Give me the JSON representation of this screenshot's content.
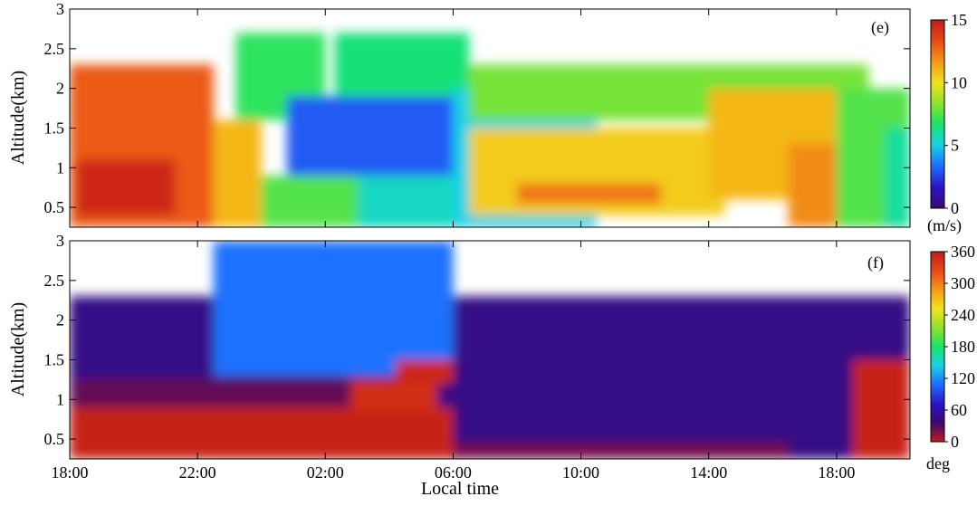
{
  "chart_data": [
    {
      "type": "heatmap",
      "panel_label": "(e)",
      "ylabel": "Altitude(km)",
      "ylim": [
        0.25,
        3.0
      ],
      "y_ticks": [
        "0.5",
        "1",
        "1.5",
        "2",
        "2.5",
        "3"
      ],
      "y_tick_values": [
        0.5,
        1.0,
        1.5,
        2.0,
        2.5,
        3.0
      ],
      "colorbar": {
        "unit": "(m/s)",
        "range": [
          0,
          15
        ],
        "ticks": [
          "0",
          "5",
          "10",
          "15"
        ],
        "tick_values": [
          0,
          5,
          10,
          15
        ],
        "colormap": [
          "#3a0a6e",
          "#2a14c8",
          "#1e6cff",
          "#17d2e6",
          "#18e36c",
          "#8de32a",
          "#f2e21c",
          "#f59a17",
          "#e84a14",
          "#c21a1a"
        ]
      },
      "regions": [
        {
          "t": [
            0,
            4.5
          ],
          "alt": [
            0.25,
            2.3
          ],
          "value": 13.0
        },
        {
          "t": [
            0.2,
            3.3
          ],
          "alt": [
            0.4,
            1.1
          ],
          "value": 14.5
        },
        {
          "t": [
            4.5,
            6.0
          ],
          "alt": [
            0.25,
            1.6
          ],
          "value": 11.0
        },
        {
          "t": [
            5.2,
            8.0
          ],
          "alt": [
            1.6,
            2.7
          ],
          "value": 7.0
        },
        {
          "t": [
            6.0,
            9.0
          ],
          "alt": [
            0.25,
            0.9
          ],
          "value": 7.5
        },
        {
          "t": [
            6.8,
            13.0
          ],
          "alt": [
            0.9,
            1.9
          ],
          "value": 3.0
        },
        {
          "t": [
            8.3,
            12.5
          ],
          "alt": [
            1.9,
            2.7
          ],
          "value": 6.5
        },
        {
          "t": [
            9.0,
            12.0
          ],
          "alt": [
            0.25,
            0.9
          ],
          "value": 5.5
        },
        {
          "t": [
            12.0,
            16.5
          ],
          "alt": [
            0.25,
            2.0
          ],
          "value": 5.0
        },
        {
          "t": [
            12.5,
            25.0
          ],
          "alt": [
            1.6,
            2.3
          ],
          "value": 8.0
        },
        {
          "t": [
            12.5,
            20.5
          ],
          "alt": [
            0.4,
            1.5
          ],
          "value": 10.5
        },
        {
          "t": [
            14.0,
            18.5
          ],
          "alt": [
            0.55,
            0.8
          ],
          "value": 12.5
        },
        {
          "t": [
            20.0,
            24.0
          ],
          "alt": [
            0.6,
            2.0
          ],
          "value": 11.0
        },
        {
          "t": [
            22.5,
            24.5
          ],
          "alt": [
            0.25,
            1.3
          ],
          "value": 12.0
        },
        {
          "t": [
            24.0,
            26.3
          ],
          "alt": [
            0.25,
            2.0
          ],
          "value": 7.5
        },
        {
          "t": [
            25.5,
            26.3
          ],
          "alt": [
            0.25,
            1.5
          ],
          "value": 6.0
        }
      ]
    },
    {
      "type": "heatmap",
      "panel_label": "(f)",
      "ylabel": "Altitude(km)",
      "xlabel": "Local time",
      "ylim": [
        0.25,
        3.0
      ],
      "y_ticks": [
        "0.5",
        "1",
        "1.5",
        "2",
        "2.5",
        "3"
      ],
      "y_tick_values": [
        0.5,
        1.0,
        1.5,
        2.0,
        2.5,
        3.0
      ],
      "x_ticks": [
        "18:00",
        "22:00",
        "02:00",
        "06:00",
        "10:00",
        "14:00",
        "18:00"
      ],
      "x_tick_hours": [
        0,
        4,
        8,
        12,
        16,
        20,
        24
      ],
      "colorbar": {
        "unit": "deg",
        "range": [
          0,
          360
        ],
        "ticks": [
          "0",
          "60",
          "120",
          "180",
          "240",
          "300",
          "360"
        ],
        "tick_values": [
          0,
          60,
          120,
          180,
          240,
          300,
          360
        ],
        "colormap": [
          "#c21a1a",
          "#3a0a6e",
          "#2a14c8",
          "#1e6cff",
          "#17d2e6",
          "#18e36c",
          "#8de32a",
          "#f2e21c",
          "#f59a17",
          "#e84a14",
          "#c21a1a"
        ]
      },
      "regions": [
        {
          "t": [
            0,
            26.3
          ],
          "alt": [
            0.25,
            2.3
          ],
          "value": 45
        },
        {
          "t": [
            4.5,
            12.0
          ],
          "alt": [
            1.3,
            3.0
          ],
          "value": 110
        },
        {
          "t": [
            0,
            12.0
          ],
          "alt": [
            0.25,
            0.9
          ],
          "value": 355
        },
        {
          "t": [
            0,
            9.0
          ],
          "alt": [
            0.9,
            1.25
          ],
          "value": 25
        },
        {
          "t": [
            8.8,
            11.5
          ],
          "alt": [
            0.85,
            1.25
          ],
          "value": 345
        },
        {
          "t": [
            10.2,
            12.0
          ],
          "alt": [
            1.2,
            1.5
          ],
          "value": 350
        },
        {
          "t": [
            12.0,
            22.5
          ],
          "alt": [
            0.25,
            0.45
          ],
          "value": 20
        },
        {
          "t": [
            24.5,
            26.3
          ],
          "alt": [
            0.25,
            1.5
          ],
          "value": 355
        }
      ]
    }
  ]
}
